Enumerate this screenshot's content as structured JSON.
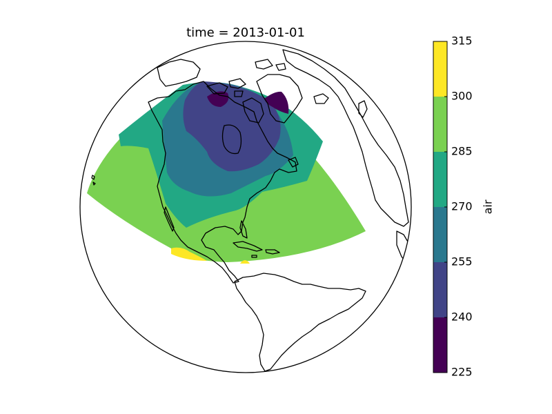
{
  "map": {
    "title": "time = 2013-01-01",
    "colorbar_label": "air",
    "levels": [
      225,
      240,
      255,
      270,
      285,
      300,
      315
    ],
    "level_colors": [
      "#440154",
      "#414487",
      "#2a788e",
      "#22a884",
      "#7ad151",
      "#fde725"
    ],
    "colormap": "viridis"
  },
  "chart_data": {
    "type": "heatmap",
    "title": "time = 2013-01-01",
    "colorbar": {
      "label": "air",
      "ticks": [
        225,
        240,
        255,
        270,
        285,
        300,
        315
      ],
      "range": [
        225,
        315
      ]
    }
  }
}
